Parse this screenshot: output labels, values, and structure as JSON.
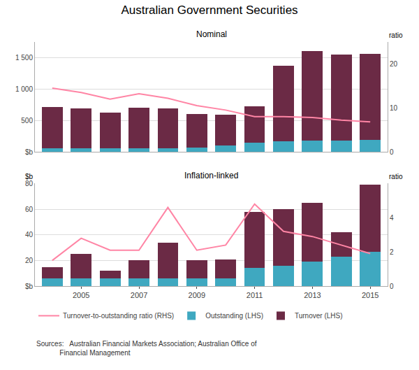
{
  "title": "Australian Government Securities",
  "annotations": [
    "Sources:   Australian Financial Markets Association; Australian Office of",
    "            Financial Management"
  ],
  "chart_data": [
    {
      "type": "bar",
      "stacked": true,
      "title": "Nominal",
      "y2label": "ratio",
      "categories": [
        null,
        "2005",
        null,
        "2007",
        null,
        "2009",
        null,
        "2011",
        null,
        "2013",
        null,
        "2015"
      ],
      "tick_labels": "y",
      "ylim": [
        0,
        1750
      ],
      "yticks": [
        {
          "value": 0,
          "label": "$b"
        },
        500,
        {
          "value": 1000,
          "label": "1 000"
        },
        {
          "value": 1500,
          "label": "1 500"
        }
      ],
      "y2lim": [
        0,
        25
      ],
      "y2ticks": [
        0,
        10,
        20
      ],
      "grid": true,
      "legend": "lower left",
      "series": [
        {
          "name": "Outstanding (LHS)",
          "type": "bar",
          "color": "#3FA8C0",
          "values": [
            55,
            55,
            55,
            55,
            55,
            65,
            100,
            150,
            170,
            175,
            175,
            190
          ]
        },
        {
          "name": "Turnover (LHS)",
          "type": "bar",
          "color": "#6B2A45",
          "values": [
            660,
            640,
            575,
            645,
            640,
            535,
            490,
            580,
            1200,
            1430,
            1370,
            1370
          ]
        },
        {
          "name": "Turnover-to-outstanding ratio (RHS)",
          "type": "line",
          "axis": "y2",
          "color": "#FF85A5",
          "values": [
            14.5,
            13.5,
            12.0,
            13.2,
            12.2,
            10.5,
            9.5,
            8.0,
            8.0,
            7.8,
            7.2,
            6.8
          ]
        }
      ]
    },
    {
      "type": "bar",
      "stacked": true,
      "title": "Inflation-linked",
      "ylabel": "$b",
      "y2label": "ratio",
      "categories": [
        null,
        "2005",
        null,
        "2007",
        null,
        "2009",
        null,
        "2011",
        null,
        "2013",
        null,
        "2015"
      ],
      "ylim": [
        0,
        80
      ],
      "yticks": [
        {
          "value": 0,
          "label": "$b"
        },
        20,
        40,
        60,
        80
      ],
      "y2lim": [
        0,
        6
      ],
      "y2ticks": [
        0,
        2,
        4
      ],
      "grid": true,
      "series": [
        {
          "name": "Outstanding (LHS)",
          "type": "bar",
          "color": "#3FA8C0",
          "values": [
            6,
            6,
            6,
            6,
            6,
            6,
            6,
            14,
            16,
            19,
            23,
            27
          ]
        },
        {
          "name": "Turnover (LHS)",
          "type": "bar",
          "color": "#6B2A45",
          "values": [
            9,
            19,
            6,
            14,
            28,
            14,
            15,
            44,
            44,
            46,
            19,
            52
          ]
        },
        {
          "name": "Turnover-to-outstanding ratio (RHS)",
          "type": "line",
          "axis": "y2",
          "color": "#FF85A5",
          "values": [
            1.5,
            2.8,
            2.1,
            2.1,
            4.6,
            2.1,
            2.4,
            4.8,
            3.2,
            2.9,
            2.4,
            1.9
          ]
        }
      ]
    }
  ]
}
